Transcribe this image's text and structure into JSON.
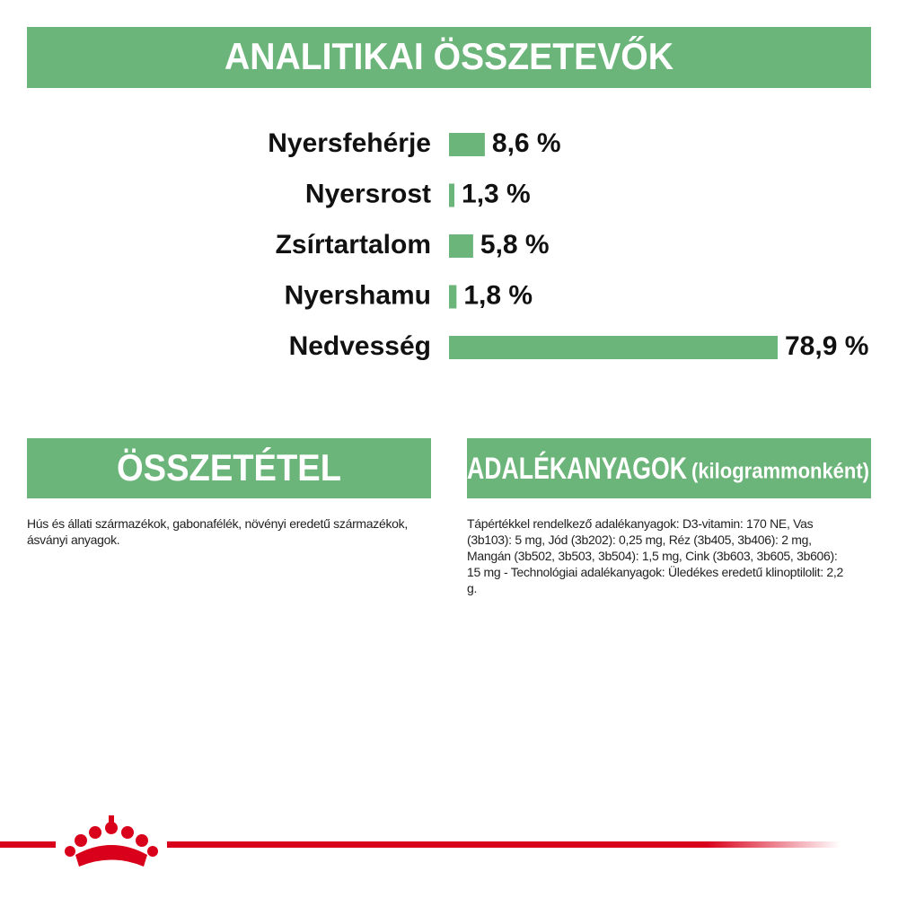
{
  "header": {
    "title": "ANALITIKAI ÖSSZETEVŐK"
  },
  "chart_data": {
    "type": "bar",
    "orientation": "horizontal",
    "categories": [
      "Nyersfehérje",
      "Nyersrost",
      "Zsírtartalom",
      "Nyershamu",
      "Nedvesség"
    ],
    "values": [
      8.6,
      1.3,
      5.8,
      1.8,
      78.9
    ],
    "value_labels": [
      "8,6 %",
      "1,3 %",
      "5,8 %",
      "1,8 %",
      "78,9 %"
    ],
    "color": "#6cb57a"
  },
  "composition": {
    "title": "ÖSSZETÉTEL",
    "text": "Hús és állati származékok, gabonafélék, növényi eredetű származékok, ásványi anyagok."
  },
  "additives": {
    "title": "ADALÉKANYAGOK",
    "subtitle": "(kilogrammonként)",
    "text": "Tápértékkel rendelkező adalékanyagok: D3-vitamin: 170 NE, Vas (3b103): 5 mg, Jód (3b202): 0,25 mg, Réz (3b405, 3b406): 2 mg, Mangán (3b502, 3b503, 3b504): 1,5 mg, Cink (3b603, 3b605, 3b606): 15 mg - Technológiai adalékanyagok: Üledékes eredetű klinoptilolit: 2,2 g."
  }
}
